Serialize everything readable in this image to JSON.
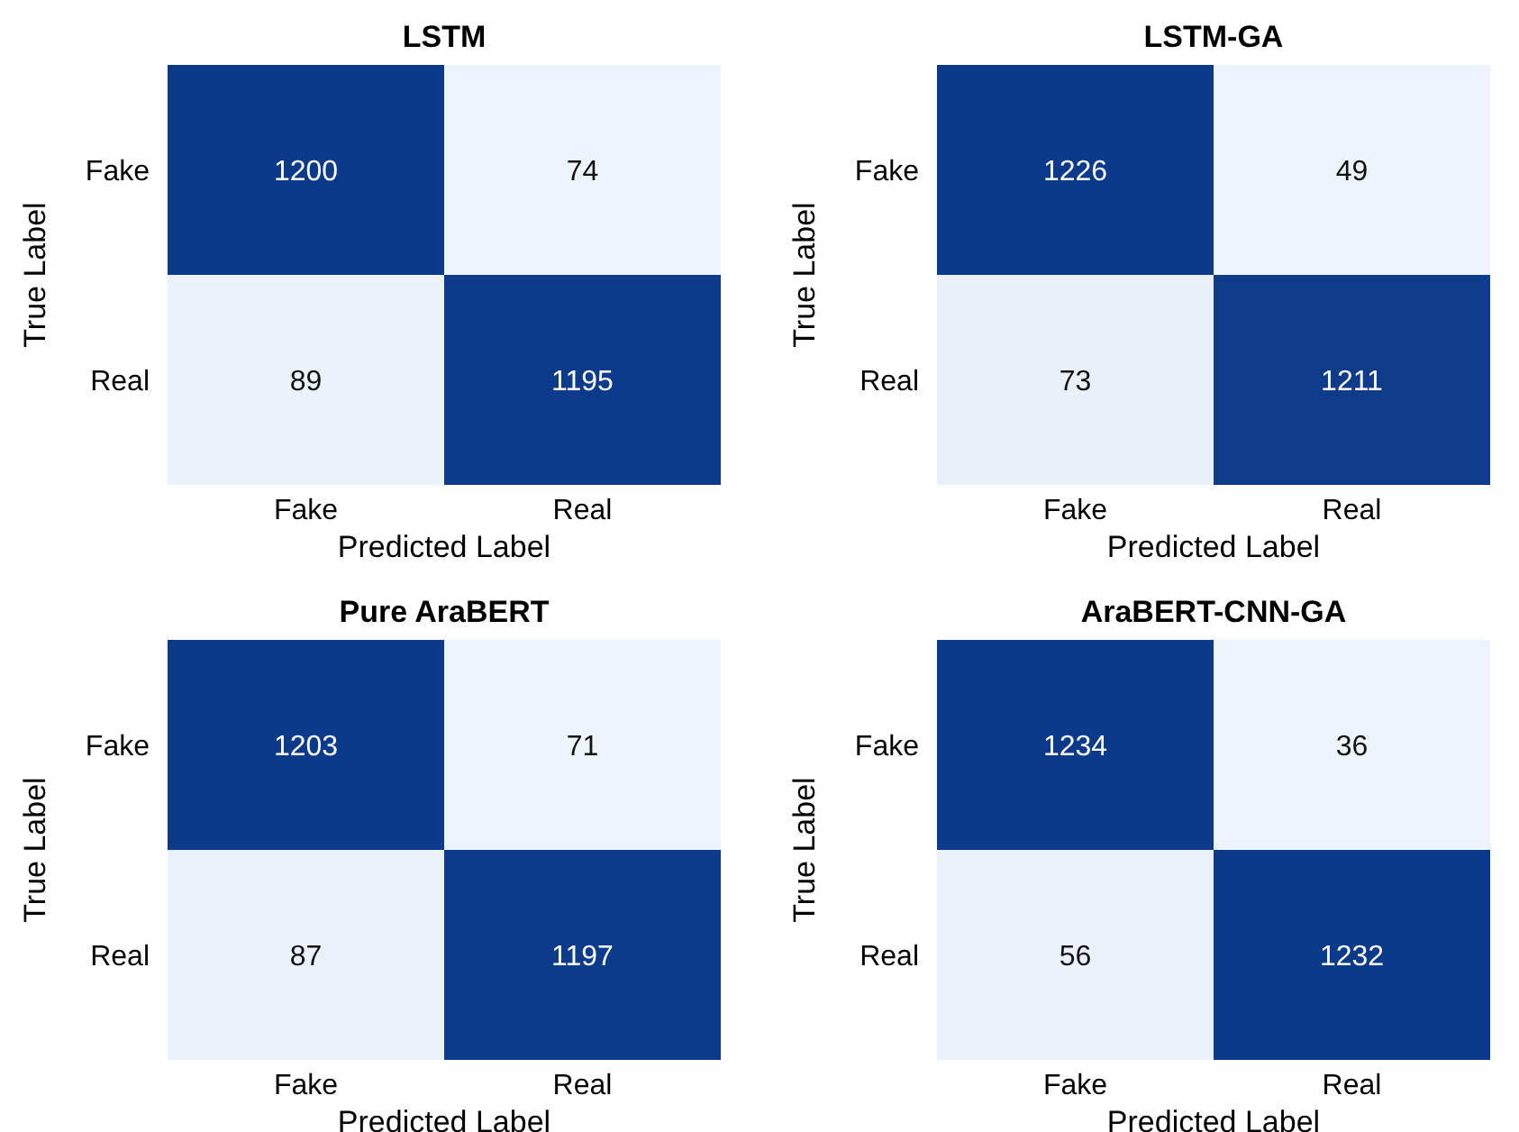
{
  "chart_data": [
    {
      "type": "heatmap",
      "title": "LSTM",
      "xlabel": "Predicted Label",
      "ylabel": "True Label",
      "categories": [
        "Fake",
        "Real"
      ],
      "y_categories": [
        "Fake",
        "Real"
      ],
      "cells": [
        [
          1200,
          74
        ],
        [
          89,
          1195
        ]
      ],
      "data_labels": true
    },
    {
      "type": "heatmap",
      "title": "LSTM-GA",
      "xlabel": "Predicted Label",
      "ylabel": "True Label",
      "categories": [
        "Fake",
        "Real"
      ],
      "y_categories": [
        "Fake",
        "Real"
      ],
      "cells": [
        [
          1226,
          49
        ],
        [
          73,
          1211
        ]
      ],
      "data_labels": true
    },
    {
      "type": "heatmap",
      "title": "Pure AraBERT",
      "xlabel": "Predicted Label",
      "ylabel": "True Label",
      "categories": [
        "Fake",
        "Real"
      ],
      "y_categories": [
        "Fake",
        "Real"
      ],
      "cells": [
        [
          1203,
          71
        ],
        [
          87,
          1197
        ]
      ],
      "data_labels": true
    },
    {
      "type": "heatmap",
      "title": "AraBERT-CNN-GA",
      "xlabel": "Predicted Label",
      "ylabel": "True Label",
      "categories": [
        "Fake",
        "Real"
      ],
      "y_categories": [
        "Fake",
        "Real"
      ],
      "cells": [
        [
          1234,
          36
        ],
        [
          56,
          1232
        ]
      ],
      "data_labels": true
    }
  ]
}
